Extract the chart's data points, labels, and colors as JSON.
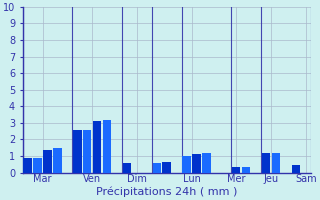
{
  "bars": [
    {
      "x": 1,
      "height": 0.85
    },
    {
      "x": 2,
      "height": 0.85
    },
    {
      "x": 3,
      "height": 1.35
    },
    {
      "x": 4,
      "height": 1.5
    },
    {
      "x": 6,
      "height": 2.55
    },
    {
      "x": 7,
      "height": 2.55
    },
    {
      "x": 8,
      "height": 3.1
    },
    {
      "x": 9,
      "height": 3.15
    },
    {
      "x": 11,
      "height": 0.6
    },
    {
      "x": 14,
      "height": 0.6
    },
    {
      "x": 15,
      "height": 0.65
    },
    {
      "x": 17,
      "height": 1.0
    },
    {
      "x": 18,
      "height": 1.1
    },
    {
      "x": 19,
      "height": 1.2
    },
    {
      "x": 22,
      "height": 0.35
    },
    {
      "x": 23,
      "height": 0.35
    },
    {
      "x": 25,
      "height": 1.2
    },
    {
      "x": 26,
      "height": 1.2
    },
    {
      "x": 28,
      "height": 0.45
    }
  ],
  "vlines": [
    0.5,
    5.5,
    10.5,
    13.5,
    16.5,
    21.5,
    24.5,
    29.5
  ],
  "day_labels": [
    {
      "x": 2.5,
      "label": "Mar"
    },
    {
      "x": 7.5,
      "label": "Ven"
    },
    {
      "x": 12.0,
      "label": "Dim"
    },
    {
      "x": 17.5,
      "label": "Lun"
    },
    {
      "x": 22.0,
      "label": "Mer"
    },
    {
      "x": 25.5,
      "label": "Jeu"
    },
    {
      "x": 29.0,
      "label": "Sam"
    }
  ],
  "bar_color_dark": "#0033cc",
  "bar_color_light": "#1a6bff",
  "background_color": "#cff0f0",
  "grid_color": "#aab8cc",
  "axis_color": "#3333aa",
  "text_color": "#3333aa",
  "xlabel": "Précipitations 24h ( mm )",
  "ylim": [
    0,
    10
  ],
  "yticks": [
    0,
    1,
    2,
    3,
    4,
    5,
    6,
    7,
    8,
    9,
    10
  ],
  "xlim": [
    0.5,
    29.5
  ],
  "bar_width": 0.85
}
